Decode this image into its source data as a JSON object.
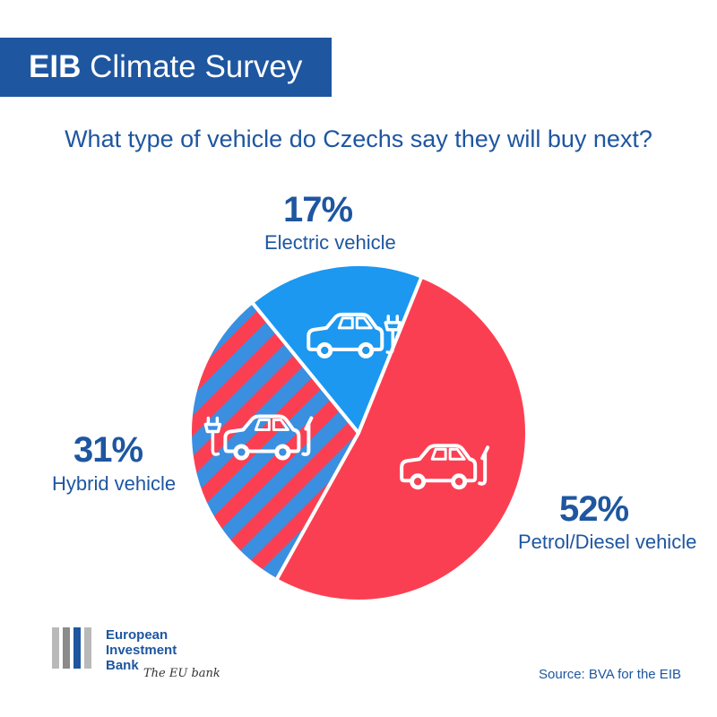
{
  "header": {
    "title_bold": "EIB",
    "title_rest": "Climate Survey"
  },
  "subtitle": "What type of vehicle do Czechs say they will buy next?",
  "chart_data": {
    "type": "pie",
    "title": "What type of vehicle do Czechs say they will buy next?",
    "slices": [
      {
        "label": "Petrol/Diesel vehicle",
        "value": 52,
        "display": "52%",
        "color": "#fb3f52",
        "pattern": "solid",
        "icon": "car-fuel-icon"
      },
      {
        "label": "Hybrid vehicle",
        "value": 31,
        "display": "31%",
        "color": "#fb3f52",
        "color2": "#3a8fe0",
        "pattern": "striped",
        "icon": "car-plug-fuel-icon"
      },
      {
        "label": "Electric vehicle",
        "value": 17,
        "display": "17%",
        "color": "#1c98f0",
        "pattern": "solid",
        "icon": "car-plug-icon"
      }
    ],
    "legend": "none"
  },
  "colors": {
    "brand_blue": "#1e56a0",
    "petrol": "#fb3f52",
    "electric": "#1c98f0",
    "hybrid_stripe": "#3a8fe0"
  },
  "footer": {
    "logo_lines": [
      "European",
      "Investment",
      "Bank"
    ],
    "tagline": "The EU bank",
    "source": "Source: BVA for the EIB"
  }
}
